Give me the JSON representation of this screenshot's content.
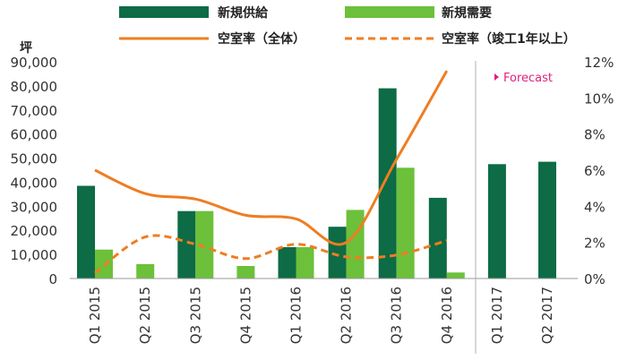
{
  "chart_data": {
    "type": "bar",
    "title": "",
    "y_unit_label": "坪",
    "categories": [
      "Q1 2015",
      "Q2 2015",
      "Q3 2015",
      "Q4 2015",
      "Q1 2016",
      "Q2 2016",
      "Q3 2016",
      "Q4 2016",
      "Q1 2017",
      "Q2 2017"
    ],
    "y_left_lim": [
      0,
      90000
    ],
    "y_left_ticks": [
      "0",
      "10,000",
      "20,000",
      "30,000",
      "40,000",
      "50,000",
      "60,000",
      "70,000",
      "80,000",
      "90,000"
    ],
    "y_right_lim": [
      0,
      12
    ],
    "y_right_ticks": [
      "0%",
      "2%",
      "4%",
      "6%",
      "8%",
      "10%",
      "12%"
    ],
    "series": [
      {
        "name": "新規供給",
        "kind": "bar",
        "axis": "left",
        "color": "#0d6b45",
        "values": [
          38500,
          null,
          28000,
          null,
          13000,
          21500,
          79000,
          33500,
          47500,
          48500
        ]
      },
      {
        "name": "新規需要",
        "kind": "bar",
        "axis": "left",
        "color": "#6cc03a",
        "values": [
          12000,
          6000,
          28000,
          5200,
          13000,
          28500,
          46000,
          2500,
          null,
          null
        ]
      },
      {
        "name": "空室率（全体）",
        "kind": "line",
        "axis": "right",
        "style": "solid",
        "color": "#ef7d22",
        "values": [
          6.0,
          4.7,
          4.4,
          3.5,
          3.3,
          2.0,
          6.6,
          11.5,
          null,
          null
        ]
      },
      {
        "name": "空室率（竣工1年以上）",
        "kind": "line",
        "axis": "right",
        "style": "dashed",
        "color": "#ef7d22",
        "values": [
          0.3,
          2.3,
          1.9,
          1.1,
          1.9,
          1.2,
          1.3,
          2.1,
          null,
          null
        ]
      }
    ],
    "forecast_label": "Forecast",
    "forecast_marker_color": "#e0207c",
    "forecast_starts_at": "Q1 2017",
    "grid": false,
    "legend_position": "top"
  }
}
